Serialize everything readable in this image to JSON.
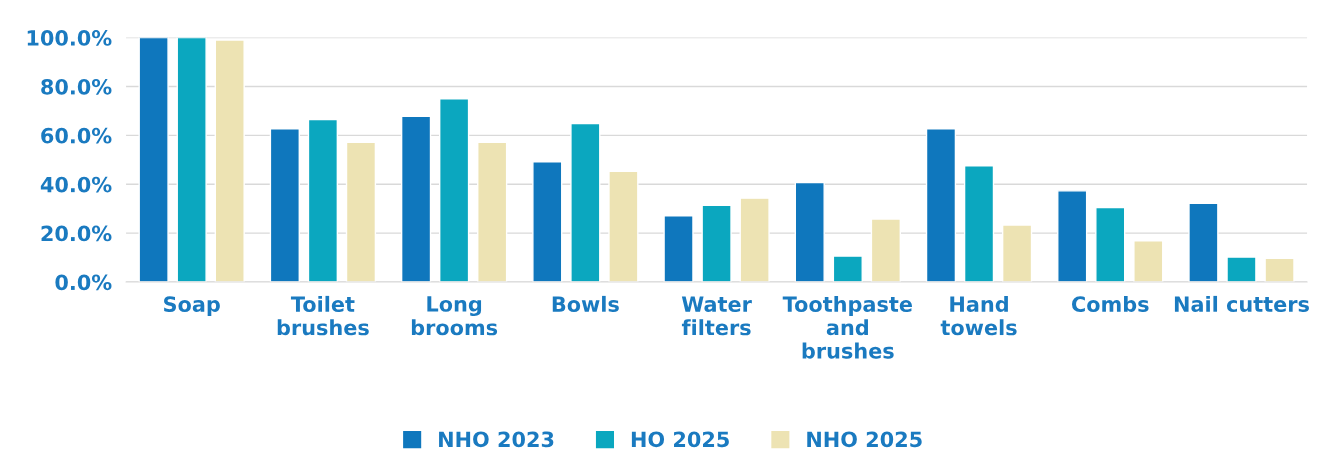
{
  "chart_data": {
    "type": "bar",
    "categories": [
      "Soap",
      "Toilet\nbrushes",
      "Long\nbrooms",
      "Bowls",
      "Water\nfilters",
      "Toothpaste\nand\nbrushes",
      "Hand\ntowels",
      "Combs",
      "Nail cutters"
    ],
    "series": [
      {
        "name": "NHO 2023",
        "color": "#0f77bd",
        "values": [
          100,
          62.7,
          67.8,
          49.2,
          27.1,
          40.7,
          62.7,
          37.3,
          32.2
        ]
      },
      {
        "name": "HO 2025",
        "color": "#0ba7bf",
        "values": [
          100,
          66.5,
          75,
          64.8,
          31.4,
          10.6,
          47.5,
          30.5,
          10.2
        ]
      },
      {
        "name": "NHO 2025",
        "color": "#ede3b3",
        "values": [
          99,
          57.2,
          57.2,
          45.3,
          34.3,
          25.8,
          23.3,
          16.9,
          9.7
        ]
      }
    ],
    "ylim": [
      0,
      100
    ],
    "yticks": [
      {
        "value": 0,
        "label": "0.0%"
      },
      {
        "value": 20,
        "label": "20.0%"
      },
      {
        "value": 40,
        "label": "40.0%"
      },
      {
        "value": 60,
        "label": "60.0%"
      },
      {
        "value": 80,
        "label": "80.0%"
      },
      {
        "value": 100,
        "label": "100.0%"
      }
    ],
    "grid": "y",
    "legend": "bottom"
  }
}
